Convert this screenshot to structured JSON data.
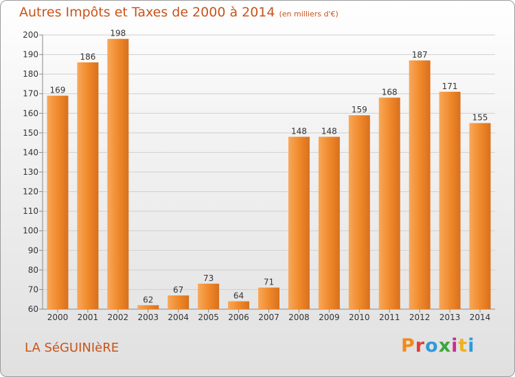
{
  "header": {
    "title": "Autres Impôts et Taxes de 2000 à 2014",
    "unit": "(en milliers d'€)"
  },
  "footer": {
    "commune": "LA SéGUINIèRE",
    "logo": "Proxiti",
    "logo_colors": [
      "#f08a1e",
      "#e23d3d",
      "#2f9ad8",
      "#3aa63a",
      "#c42f8e",
      "#f0b21e",
      "#2f9ad8"
    ]
  },
  "chart_data": {
    "type": "bar",
    "title": "Autres Impôts et Taxes de 2000 à 2014",
    "categories": [
      "2000",
      "2001",
      "2002",
      "2003",
      "2004",
      "2005",
      "2006",
      "2007",
      "2008",
      "2009",
      "2010",
      "2011",
      "2012",
      "2013",
      "2014"
    ],
    "values": [
      169,
      186,
      198,
      62,
      67,
      73,
      64,
      71,
      148,
      148,
      159,
      168,
      187,
      171,
      155
    ],
    "ylim": [
      60,
      200
    ],
    "yticks": [
      60,
      70,
      80,
      90,
      100,
      110,
      120,
      130,
      140,
      150,
      160,
      170,
      180,
      190,
      200
    ],
    "grid": true,
    "colors": {
      "bar": "#f08a2c",
      "bar_light": "#f8a85a",
      "bar_dark": "#d9701c",
      "grid": "#cfcfcf",
      "text": "#333333",
      "title": "#c8531a"
    }
  }
}
